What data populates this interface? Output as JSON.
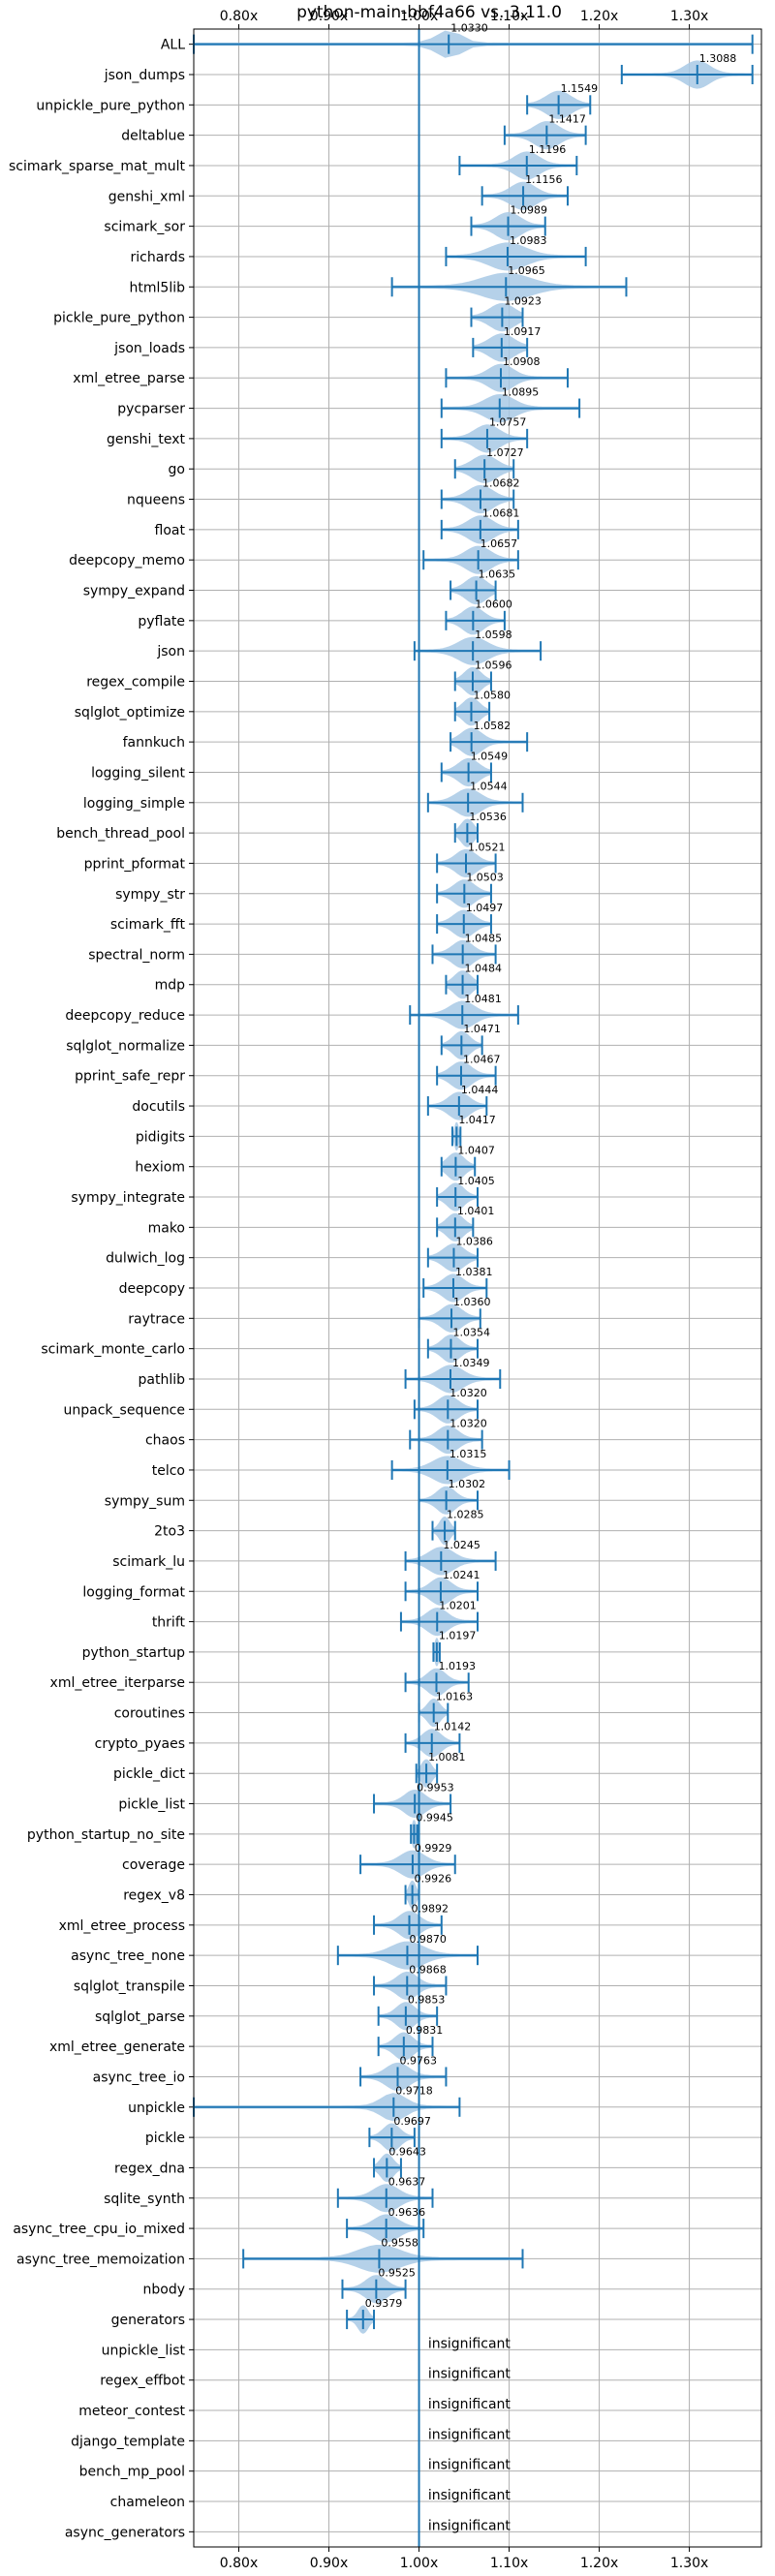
{
  "chart_data": {
    "type": "violin",
    "title": "python-main-bbf4a66 vs. 3.11.0",
    "xlim": [
      0.75,
      1.38
    ],
    "x_ticks": [
      0.8,
      0.9,
      1.0,
      1.1,
      1.2,
      1.3
    ],
    "x_tick_labels": [
      "0.80x",
      "0.90x",
      "1.00x",
      "1.10x",
      "1.20x",
      "1.30x"
    ],
    "grid": true,
    "reference_line": 1.0,
    "colors": {
      "violin": "#a9c9e6",
      "line": "#1f77b4",
      "grid": "#b0b0b0"
    },
    "insignificant_label": "insignificant",
    "benchmarks": [
      {
        "name": "ALL",
        "value": 1.033,
        "label": "1.0330",
        "min": 0.75,
        "max": 1.37,
        "spread": 0.03
      },
      {
        "name": "json_dumps",
        "value": 1.3088,
        "label": "1.3088",
        "min": 1.225,
        "max": 1.37,
        "spread": 0.03
      },
      {
        "name": "unpickle_pure_python",
        "value": 1.1549,
        "label": "1.1549",
        "min": 1.12,
        "max": 1.19,
        "spread": 0.03
      },
      {
        "name": "deltablue",
        "value": 1.1417,
        "label": "1.1417",
        "min": 1.095,
        "max": 1.185,
        "spread": 0.03
      },
      {
        "name": "scimark_sparse_mat_mult",
        "value": 1.1196,
        "label": "1.1196",
        "min": 1.045,
        "max": 1.175,
        "spread": 0.03
      },
      {
        "name": "genshi_xml",
        "value": 1.1156,
        "label": "1.1156",
        "min": 1.07,
        "max": 1.165,
        "spread": 0.03
      },
      {
        "name": "scimark_sor",
        "value": 1.0989,
        "label": "1.0989",
        "min": 1.058,
        "max": 1.14,
        "spread": 0.03
      },
      {
        "name": "richards",
        "value": 1.0983,
        "label": "1.0983",
        "min": 1.03,
        "max": 1.185,
        "spread": 0.045
      },
      {
        "name": "html5lib",
        "value": 1.0965,
        "label": "1.0965",
        "min": 0.97,
        "max": 1.23,
        "spread": 0.06
      },
      {
        "name": "pickle_pure_python",
        "value": 1.0923,
        "label": "1.0923",
        "min": 1.058,
        "max": 1.115,
        "spread": 0.03
      },
      {
        "name": "json_loads",
        "value": 1.0917,
        "label": "1.0917",
        "min": 1.06,
        "max": 1.12,
        "spread": 0.03
      },
      {
        "name": "xml_etree_parse",
        "value": 1.0908,
        "label": "1.0908",
        "min": 1.03,
        "max": 1.165,
        "spread": 0.03
      },
      {
        "name": "pycparser",
        "value": 1.0895,
        "label": "1.0895",
        "min": 1.025,
        "max": 1.178,
        "spread": 0.035
      },
      {
        "name": "genshi_text",
        "value": 1.0757,
        "label": "1.0757",
        "min": 1.025,
        "max": 1.12,
        "spread": 0.03
      },
      {
        "name": "go",
        "value": 1.0727,
        "label": "1.0727",
        "min": 1.04,
        "max": 1.105,
        "spread": 0.03
      },
      {
        "name": "nqueens",
        "value": 1.0682,
        "label": "1.0682",
        "min": 1.025,
        "max": 1.105,
        "spread": 0.03
      },
      {
        "name": "float",
        "value": 1.0681,
        "label": "1.0681",
        "min": 1.025,
        "max": 1.11,
        "spread": 0.03
      },
      {
        "name": "deepcopy_memo",
        "value": 1.0657,
        "label": "1.0657",
        "min": 1.005,
        "max": 1.11,
        "spread": 0.03
      },
      {
        "name": "sympy_expand",
        "value": 1.0635,
        "label": "1.0635",
        "min": 1.035,
        "max": 1.085,
        "spread": 0.025
      },
      {
        "name": "pyflate",
        "value": 1.06,
        "label": "1.0600",
        "min": 1.03,
        "max": 1.095,
        "spread": 0.025
      },
      {
        "name": "json",
        "value": 1.0598,
        "label": "1.0598",
        "min": 0.995,
        "max": 1.135,
        "spread": 0.035
      },
      {
        "name": "regex_compile",
        "value": 1.0596,
        "label": "1.0596",
        "min": 1.04,
        "max": 1.08,
        "spread": 0.02
      },
      {
        "name": "sqlglot_optimize",
        "value": 1.058,
        "label": "1.0580",
        "min": 1.04,
        "max": 1.078,
        "spread": 0.02
      },
      {
        "name": "fannkuch",
        "value": 1.0582,
        "label": "1.0582",
        "min": 1.035,
        "max": 1.12,
        "spread": 0.025
      },
      {
        "name": "logging_silent",
        "value": 1.0549,
        "label": "1.0549",
        "min": 1.025,
        "max": 1.08,
        "spread": 0.025
      },
      {
        "name": "logging_simple",
        "value": 1.0544,
        "label": "1.0544",
        "min": 1.01,
        "max": 1.115,
        "spread": 0.03
      },
      {
        "name": "bench_thread_pool",
        "value": 1.0536,
        "label": "1.0536",
        "min": 1.04,
        "max": 1.065,
        "spread": 0.015
      },
      {
        "name": "pprint_pformat",
        "value": 1.0521,
        "label": "1.0521",
        "min": 1.02,
        "max": 1.085,
        "spread": 0.025
      },
      {
        "name": "sympy_str",
        "value": 1.0503,
        "label": "1.0503",
        "min": 1.02,
        "max": 1.08,
        "spread": 0.025
      },
      {
        "name": "scimark_fft",
        "value": 1.0497,
        "label": "1.0497",
        "min": 1.02,
        "max": 1.08,
        "spread": 0.025
      },
      {
        "name": "spectral_norm",
        "value": 1.0485,
        "label": "1.0485",
        "min": 1.015,
        "max": 1.085,
        "spread": 0.025
      },
      {
        "name": "mdp",
        "value": 1.0484,
        "label": "1.0484",
        "min": 1.03,
        "max": 1.065,
        "spread": 0.02
      },
      {
        "name": "deepcopy_reduce",
        "value": 1.0481,
        "label": "1.0481",
        "min": 0.99,
        "max": 1.11,
        "spread": 0.03
      },
      {
        "name": "sqlglot_normalize",
        "value": 1.0471,
        "label": "1.0471",
        "min": 1.025,
        "max": 1.07,
        "spread": 0.02
      },
      {
        "name": "pprint_safe_repr",
        "value": 1.0467,
        "label": "1.0467",
        "min": 1.02,
        "max": 1.085,
        "spread": 0.025
      },
      {
        "name": "docutils",
        "value": 1.0444,
        "label": "1.0444",
        "min": 1.01,
        "max": 1.075,
        "spread": 0.025
      },
      {
        "name": "pidigits",
        "value": 1.0417,
        "label": "1.0417",
        "min": 1.037,
        "max": 1.046,
        "spread": 0.004
      },
      {
        "name": "hexiom",
        "value": 1.0407,
        "label": "1.0407",
        "min": 1.025,
        "max": 1.062,
        "spread": 0.02
      },
      {
        "name": "sympy_integrate",
        "value": 1.0405,
        "label": "1.0405",
        "min": 1.02,
        "max": 1.065,
        "spread": 0.02
      },
      {
        "name": "mako",
        "value": 1.0401,
        "label": "1.0401",
        "min": 1.02,
        "max": 1.06,
        "spread": 0.02
      },
      {
        "name": "dulwich_log",
        "value": 1.0386,
        "label": "1.0386",
        "min": 1.01,
        "max": 1.065,
        "spread": 0.025
      },
      {
        "name": "deepcopy",
        "value": 1.0381,
        "label": "1.0381",
        "min": 1.005,
        "max": 1.075,
        "spread": 0.025
      },
      {
        "name": "raytrace",
        "value": 1.036,
        "label": "1.0360",
        "min": 1.0,
        "max": 1.068,
        "spread": 0.025
      },
      {
        "name": "scimark_monte_carlo",
        "value": 1.0354,
        "label": "1.0354",
        "min": 1.01,
        "max": 1.065,
        "spread": 0.022
      },
      {
        "name": "pathlib",
        "value": 1.0349,
        "label": "1.0349",
        "min": 0.985,
        "max": 1.09,
        "spread": 0.03
      },
      {
        "name": "unpack_sequence",
        "value": 1.032,
        "label": "1.0320",
        "min": 0.995,
        "max": 1.065,
        "spread": 0.025
      },
      {
        "name": "chaos",
        "value": 1.032,
        "label": "1.0320",
        "min": 0.99,
        "max": 1.07,
        "spread": 0.025
      },
      {
        "name": "telco",
        "value": 1.0315,
        "label": "1.0315",
        "min": 0.97,
        "max": 1.1,
        "spread": 0.035
      },
      {
        "name": "sympy_sum",
        "value": 1.0302,
        "label": "1.0302",
        "min": 1.0,
        "max": 1.065,
        "spread": 0.022
      },
      {
        "name": "2to3",
        "value": 1.0285,
        "label": "1.0285",
        "min": 1.015,
        "max": 1.04,
        "spread": 0.012
      },
      {
        "name": "scimark_lu",
        "value": 1.0245,
        "label": "1.0245",
        "min": 0.985,
        "max": 1.085,
        "spread": 0.03
      },
      {
        "name": "logging_format",
        "value": 1.0241,
        "label": "1.0241",
        "min": 0.985,
        "max": 1.065,
        "spread": 0.025
      },
      {
        "name": "thrift",
        "value": 1.0201,
        "label": "1.0201",
        "min": 0.98,
        "max": 1.065,
        "spread": 0.025
      },
      {
        "name": "python_startup",
        "value": 1.0197,
        "label": "1.0197",
        "min": 1.016,
        "max": 1.023,
        "spread": 0.004
      },
      {
        "name": "xml_etree_iterparse",
        "value": 1.0193,
        "label": "1.0193",
        "min": 0.985,
        "max": 1.055,
        "spread": 0.022
      },
      {
        "name": "coroutines",
        "value": 1.0163,
        "label": "1.0163",
        "min": 1.0,
        "max": 1.032,
        "spread": 0.015
      },
      {
        "name": "crypto_pyaes",
        "value": 1.0142,
        "label": "1.0142",
        "min": 0.985,
        "max": 1.045,
        "spread": 0.022
      },
      {
        "name": "pickle_dict",
        "value": 1.0081,
        "label": "1.0081",
        "min": 0.997,
        "max": 1.02,
        "spread": 0.012
      },
      {
        "name": "pickle_list",
        "value": 0.9953,
        "label": "0.9953",
        "min": 0.95,
        "max": 1.035,
        "spread": 0.025
      },
      {
        "name": "python_startup_no_site",
        "value": 0.9945,
        "label": "0.9945",
        "min": 0.991,
        "max": 0.998,
        "spread": 0.004
      },
      {
        "name": "coverage",
        "value": 0.9929,
        "label": "0.9929",
        "min": 0.935,
        "max": 1.04,
        "spread": 0.03
      },
      {
        "name": "regex_v8",
        "value": 0.9926,
        "label": "0.9926",
        "min": 0.985,
        "max": 1.0,
        "spread": 0.008
      },
      {
        "name": "xml_etree_process",
        "value": 0.9892,
        "label": "0.9892",
        "min": 0.95,
        "max": 1.025,
        "spread": 0.025
      },
      {
        "name": "async_tree_none",
        "value": 0.987,
        "label": "0.9870",
        "min": 0.91,
        "max": 1.065,
        "spread": 0.04
      },
      {
        "name": "sqlglot_transpile",
        "value": 0.9868,
        "label": "0.9868",
        "min": 0.95,
        "max": 1.03,
        "spread": 0.025
      },
      {
        "name": "sqlglot_parse",
        "value": 0.9853,
        "label": "0.9853",
        "min": 0.955,
        "max": 1.02,
        "spread": 0.022
      },
      {
        "name": "xml_etree_generate",
        "value": 0.9831,
        "label": "0.9831",
        "min": 0.955,
        "max": 1.015,
        "spread": 0.022
      },
      {
        "name": "async_tree_io",
        "value": 0.9763,
        "label": "0.9763",
        "min": 0.935,
        "max": 1.03,
        "spread": 0.028
      },
      {
        "name": "unpickle",
        "value": 0.9718,
        "label": "0.9718",
        "min": 0.75,
        "max": 1.045,
        "spread": 0.03
      },
      {
        "name": "pickle",
        "value": 0.9697,
        "label": "0.9697",
        "min": 0.945,
        "max": 0.995,
        "spread": 0.02
      },
      {
        "name": "regex_dna",
        "value": 0.9643,
        "label": "0.9643",
        "min": 0.95,
        "max": 0.98,
        "spread": 0.015
      },
      {
        "name": "sqlite_synth",
        "value": 0.9637,
        "label": "0.9637",
        "min": 0.91,
        "max": 1.015,
        "spread": 0.03
      },
      {
        "name": "async_tree_cpu_io_mixed",
        "value": 0.9636,
        "label": "0.9636",
        "min": 0.92,
        "max": 1.005,
        "spread": 0.03
      },
      {
        "name": "async_tree_memoization",
        "value": 0.9558,
        "label": "0.9558",
        "min": 0.805,
        "max": 1.115,
        "spread": 0.05
      },
      {
        "name": "nbody",
        "value": 0.9525,
        "label": "0.9525",
        "min": 0.915,
        "max": 0.985,
        "spread": 0.025
      },
      {
        "name": "generators",
        "value": 0.9379,
        "label": "0.9379",
        "min": 0.92,
        "max": 0.95,
        "spread": 0.012
      },
      {
        "name": "unpickle_list",
        "insignificant": true
      },
      {
        "name": "regex_effbot",
        "insignificant": true
      },
      {
        "name": "meteor_contest",
        "insignificant": true
      },
      {
        "name": "django_template",
        "insignificant": true
      },
      {
        "name": "bench_mp_pool",
        "insignificant": true
      },
      {
        "name": "chameleon",
        "insignificant": true
      },
      {
        "name": "async_generators",
        "insignificant": true
      }
    ]
  }
}
